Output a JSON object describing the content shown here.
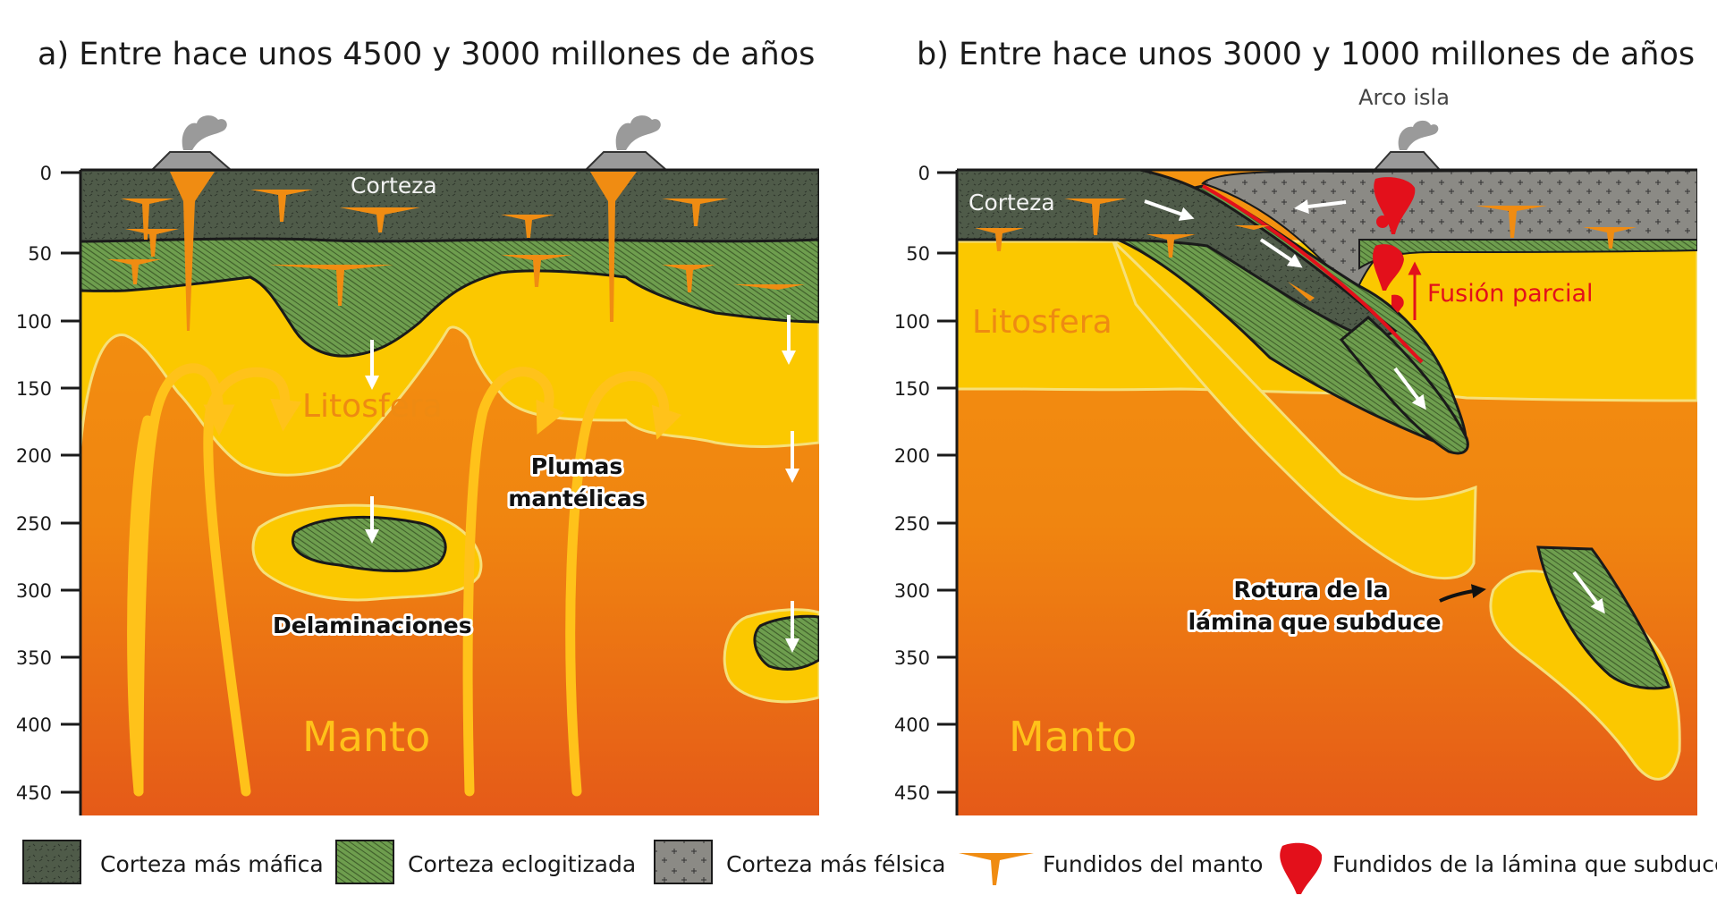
{
  "panel_a": {
    "title": "a) Entre hace unos 4500 y 3000 millones de años",
    "labels": {
      "corteza": "Corteza",
      "litosfera": "Litosfera",
      "plumas_line1": "Plumas",
      "plumas_line2": "mantélicas",
      "delaminaciones": "Delaminaciones",
      "manto": "Manto"
    }
  },
  "panel_b": {
    "title": "b) Entre hace unos 3000 y 1000 millones de años",
    "labels": {
      "arco_isla": "Arco isla",
      "corteza": "Corteza",
      "litosfera": "Litosfera",
      "fusion_parcial": "Fusión parcial",
      "rotura_line1": "Rotura de la",
      "rotura_line2": "lámina que subduce",
      "manto": "Manto"
    }
  },
  "depth_axis": [
    "0",
    "50",
    "100",
    "150",
    "200",
    "250",
    "300",
    "350",
    "400",
    "450"
  ],
  "legend": [
    {
      "label": "Corteza más máfica",
      "swatch": "mafic"
    },
    {
      "label": "Corteza eclogitizada",
      "swatch": "eclogite"
    },
    {
      "label": "Corteza más félsica",
      "swatch": "felsic"
    },
    {
      "label": "Fundidos del manto",
      "swatch": "mantle-melt"
    },
    {
      "label": "Fundidos de la lámina que subduce",
      "swatch": "slab-melt"
    }
  ],
  "colors": {
    "mafic": "#4f5b49",
    "eclogite": "#6e9e4e",
    "felsic": "#8b8a85",
    "lithosphere": "#fbc800",
    "mantle_top": "#f28c0c",
    "mantle_bottom": "#e75812",
    "mantle_melt": "#f08c12",
    "slab_melt": "#e3101b",
    "ocean": "#a7d8ec"
  }
}
